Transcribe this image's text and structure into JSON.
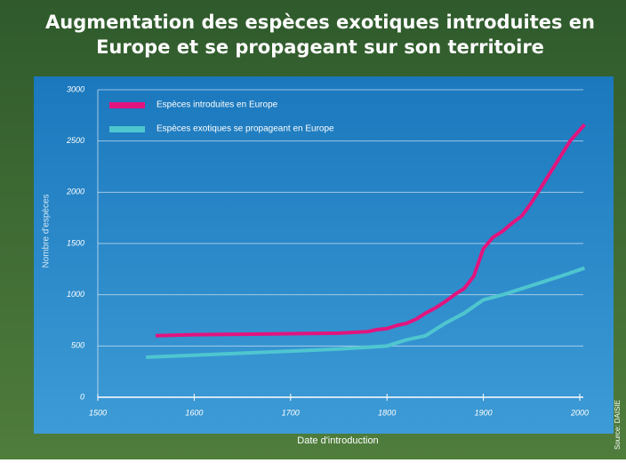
{
  "chart_data": {
    "type": "line",
    "title": [
      "Augmentation des espèces exotiques introduites en",
      "Europe et se propageant sur son territoire"
    ],
    "xlabel": "Date d'introduction",
    "ylabel": "Nombre d'espèces",
    "source": "Source: DAISIE",
    "xlim": [
      1500,
      2000
    ],
    "xticks": [
      1500,
      1600,
      1700,
      1800,
      1900,
      2000
    ],
    "ylim": [
      0,
      3000
    ],
    "yticks": [
      0,
      500,
      1000,
      1500,
      2000,
      2500,
      3000
    ],
    "grid": true,
    "legend": "top-left",
    "series": [
      {
        "name": "Espèces introduites en Europe",
        "color": "#e2147e",
        "x": [
          1560,
          1600,
          1650,
          1700,
          1750,
          1780,
          1790,
          1800,
          1810,
          1820,
          1830,
          1840,
          1850,
          1860,
          1870,
          1880,
          1890,
          1900,
          1910,
          1920,
          1930,
          1940,
          1950,
          1960,
          1970,
          1980,
          1990,
          2005
        ],
        "values": [
          600,
          610,
          615,
          620,
          625,
          640,
          660,
          670,
          700,
          720,
          760,
          820,
          870,
          930,
          1000,
          1060,
          1180,
          1450,
          1560,
          1620,
          1700,
          1770,
          1900,
          2050,
          2200,
          2350,
          2500,
          2660
        ]
      },
      {
        "name": "Espèces exotiques se propageant en Europe",
        "color": "#4fc6cf",
        "x": [
          1550,
          1600,
          1650,
          1700,
          1750,
          1800,
          1820,
          1840,
          1860,
          1880,
          1900,
          1920,
          1940,
          1960,
          1980,
          2005
        ],
        "values": [
          390,
          410,
          430,
          450,
          470,
          500,
          560,
          600,
          720,
          820,
          950,
          1000,
          1060,
          1120,
          1180,
          1260
        ]
      }
    ]
  }
}
